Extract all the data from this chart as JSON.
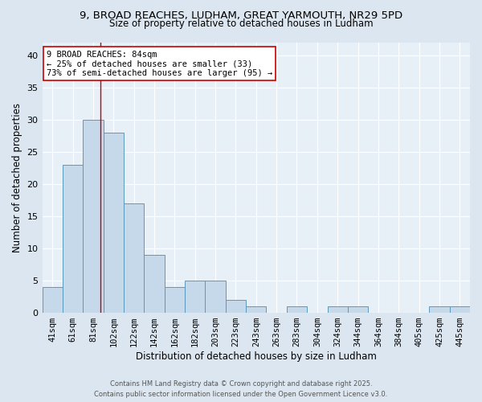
{
  "title_line1": "9, BROAD REACHES, LUDHAM, GREAT YARMOUTH, NR29 5PD",
  "title_line2": "Size of property relative to detached houses in Ludham",
  "xlabel": "Distribution of detached houses by size in Ludham",
  "ylabel": "Number of detached properties",
  "categories": [
    "41sqm",
    "61sqm",
    "81sqm",
    "102sqm",
    "122sqm",
    "142sqm",
    "162sqm",
    "182sqm",
    "203sqm",
    "223sqm",
    "243sqm",
    "263sqm",
    "283sqm",
    "304sqm",
    "324sqm",
    "344sqm",
    "364sqm",
    "384sqm",
    "405sqm",
    "425sqm",
    "445sqm"
  ],
  "values": [
    4,
    23,
    30,
    28,
    17,
    9,
    4,
    5,
    5,
    2,
    1,
    0,
    1,
    0,
    1,
    1,
    0,
    0,
    0,
    1,
    1
  ],
  "bar_color": "#c6d9ea",
  "bar_edge_color": "#5b9abd",
  "vline_x_index": 2.35,
  "vline_color": "#cc0000",
  "annotation_text": "9 BROAD REACHES: 84sqm\n← 25% of detached houses are smaller (33)\n73% of semi-detached houses are larger (95) →",
  "annotation_box_color": "white",
  "annotation_box_edge": "#cc0000",
  "ylim": [
    0,
    42
  ],
  "yticks": [
    0,
    5,
    10,
    15,
    20,
    25,
    30,
    35,
    40
  ],
  "footer_line1": "Contains HM Land Registry data © Crown copyright and database right 2025.",
  "footer_line2": "Contains public sector information licensed under the Open Government Licence v3.0.",
  "bg_color": "#dce6f0",
  "plot_bg_color": "#e8f0f7",
  "title_fontsize": 9.5,
  "subtitle_fontsize": 8.5,
  "xlabel_fontsize": 8.5,
  "ylabel_fontsize": 8.5,
  "tick_fontsize": 7.5,
  "footer_fontsize": 6.0,
  "annotation_fontsize": 7.5
}
